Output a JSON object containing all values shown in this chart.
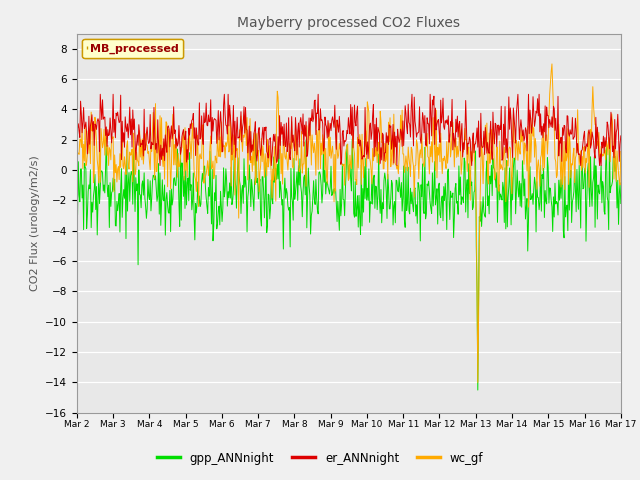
{
  "title": "Mayberry processed CO2 Fluxes",
  "ylabel": "CO2 Flux (urology/m2/s)",
  "ylim": [
    -16,
    9
  ],
  "yticks": [
    -16,
    -14,
    -12,
    -10,
    -8,
    -6,
    -4,
    -2,
    0,
    2,
    4,
    6,
    8
  ],
  "n_days": 15,
  "n_points": 720,
  "colors": {
    "gpp_ANNnight": "#00dd00",
    "er_ANNnight": "#dd0000",
    "wc_gf": "#ffaa00"
  },
  "legend_label": "MB_processed",
  "legend_text_color": "#990000",
  "legend_box_edgecolor": "#cc9900",
  "legend_box_facecolor": "#ffffcc",
  "plot_bg": "#e8e8e8",
  "grid_color": "#ffffff",
  "fig_bg": "#f0f0f0",
  "title_color": "#555555",
  "label_color": "#555555"
}
